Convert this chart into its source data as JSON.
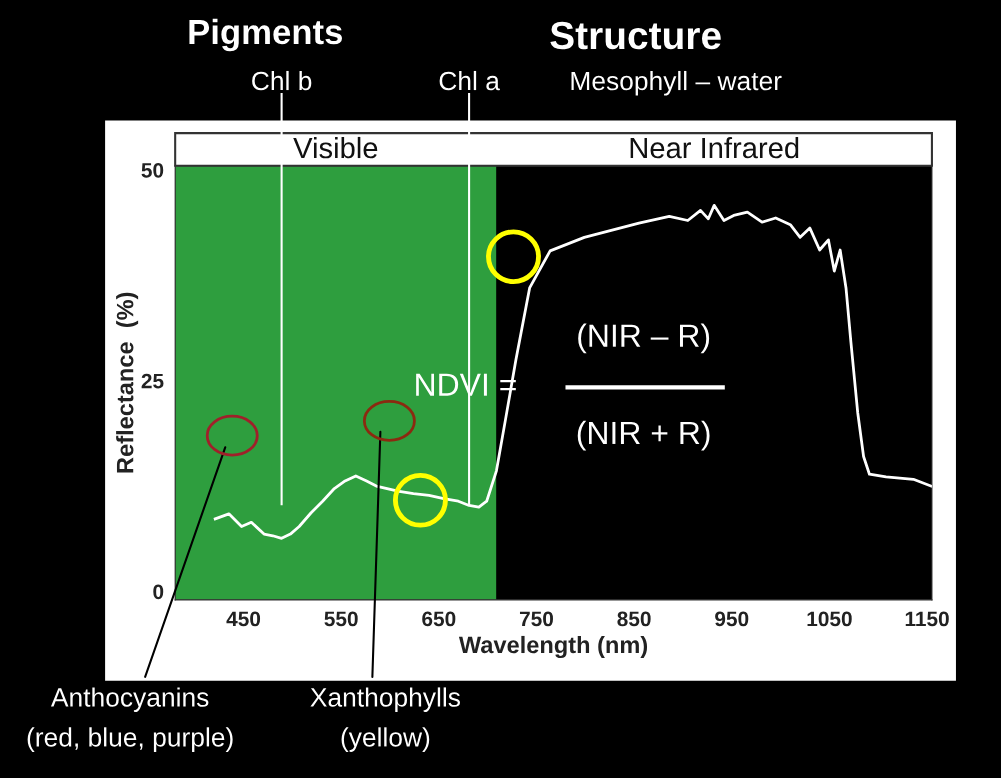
{
  "chart_data": {
    "type": "line",
    "xlabel": "Wavelength (nm)",
    "ylabel": "Reflectance  (%)",
    "x": [
      421,
      435,
      448,
      458,
      471,
      480,
      489,
      498,
      507,
      519,
      531,
      543,
      554,
      565,
      576,
      586,
      597,
      608,
      624,
      640,
      655,
      670,
      681,
      691,
      699,
      709,
      718,
      729,
      743,
      764,
      799,
      855,
      886,
      905,
      918,
      926,
      932,
      942,
      952,
      966,
      981,
      995,
      1010,
      1020,
      1030,
      1040,
      1049,
      1055,
      1061,
      1067,
      1072,
      1079,
      1085,
      1091,
      1108,
      1136,
      1154
    ],
    "series": [
      {
        "color": "#ffffff",
        "values": [
          8.6,
          9.2,
          7.7,
          8.2,
          6.8,
          6.6,
          6.3,
          6.8,
          7.7,
          9.3,
          10.7,
          12.2,
          13.1,
          13.7,
          13.1,
          12.5,
          12.2,
          11.9,
          11.6,
          11.4,
          11.0,
          10.7,
          10.2,
          10.0,
          10.7,
          14.3,
          20.2,
          27.5,
          36.0,
          40.4,
          42.0,
          43.7,
          44.5,
          44.0,
          45.2,
          44.2,
          45.8,
          44.0,
          44.6,
          45.0,
          43.8,
          44.3,
          43.5,
          42.0,
          43.1,
          40.5,
          41.7,
          38.0,
          40.5,
          36.0,
          29.6,
          21.2,
          16.0,
          13.9,
          13.6,
          13.3,
          12.5
        ]
      }
    ],
    "xlim": [
      380,
      1155
    ],
    "ylim": [
      -1,
      50.5
    ],
    "xticks": [
      450,
      550,
      650,
      750,
      850,
      950,
      1050,
      1150
    ],
    "yticks": [
      0,
      25,
      50
    ],
    "grid": false,
    "legend": false,
    "bands": [
      {
        "axis": "x",
        "from": 380,
        "to": 709,
        "label": "Visible",
        "color": "#2e9e3e"
      },
      {
        "axis": "x",
        "from": 709,
        "to": 1155,
        "label": "Near Infrared",
        "color": "#000000"
      }
    ],
    "ref_lines": [
      {
        "axis": "x",
        "value": 489,
        "label": "Chl b",
        "color": "#ffffff"
      },
      {
        "axis": "x",
        "value": 681,
        "label": "Chl a",
        "color": "#ffffff"
      }
    ],
    "annotations": [
      "Pigments",
      "Structure",
      "Mesophyll – water",
      "Anthocyanins\n(red, blue, purple)",
      "Xanthophylls\n(yellow)",
      "NDVI =",
      "(NIR – R)",
      "(NIR + R)"
    ]
  }
}
